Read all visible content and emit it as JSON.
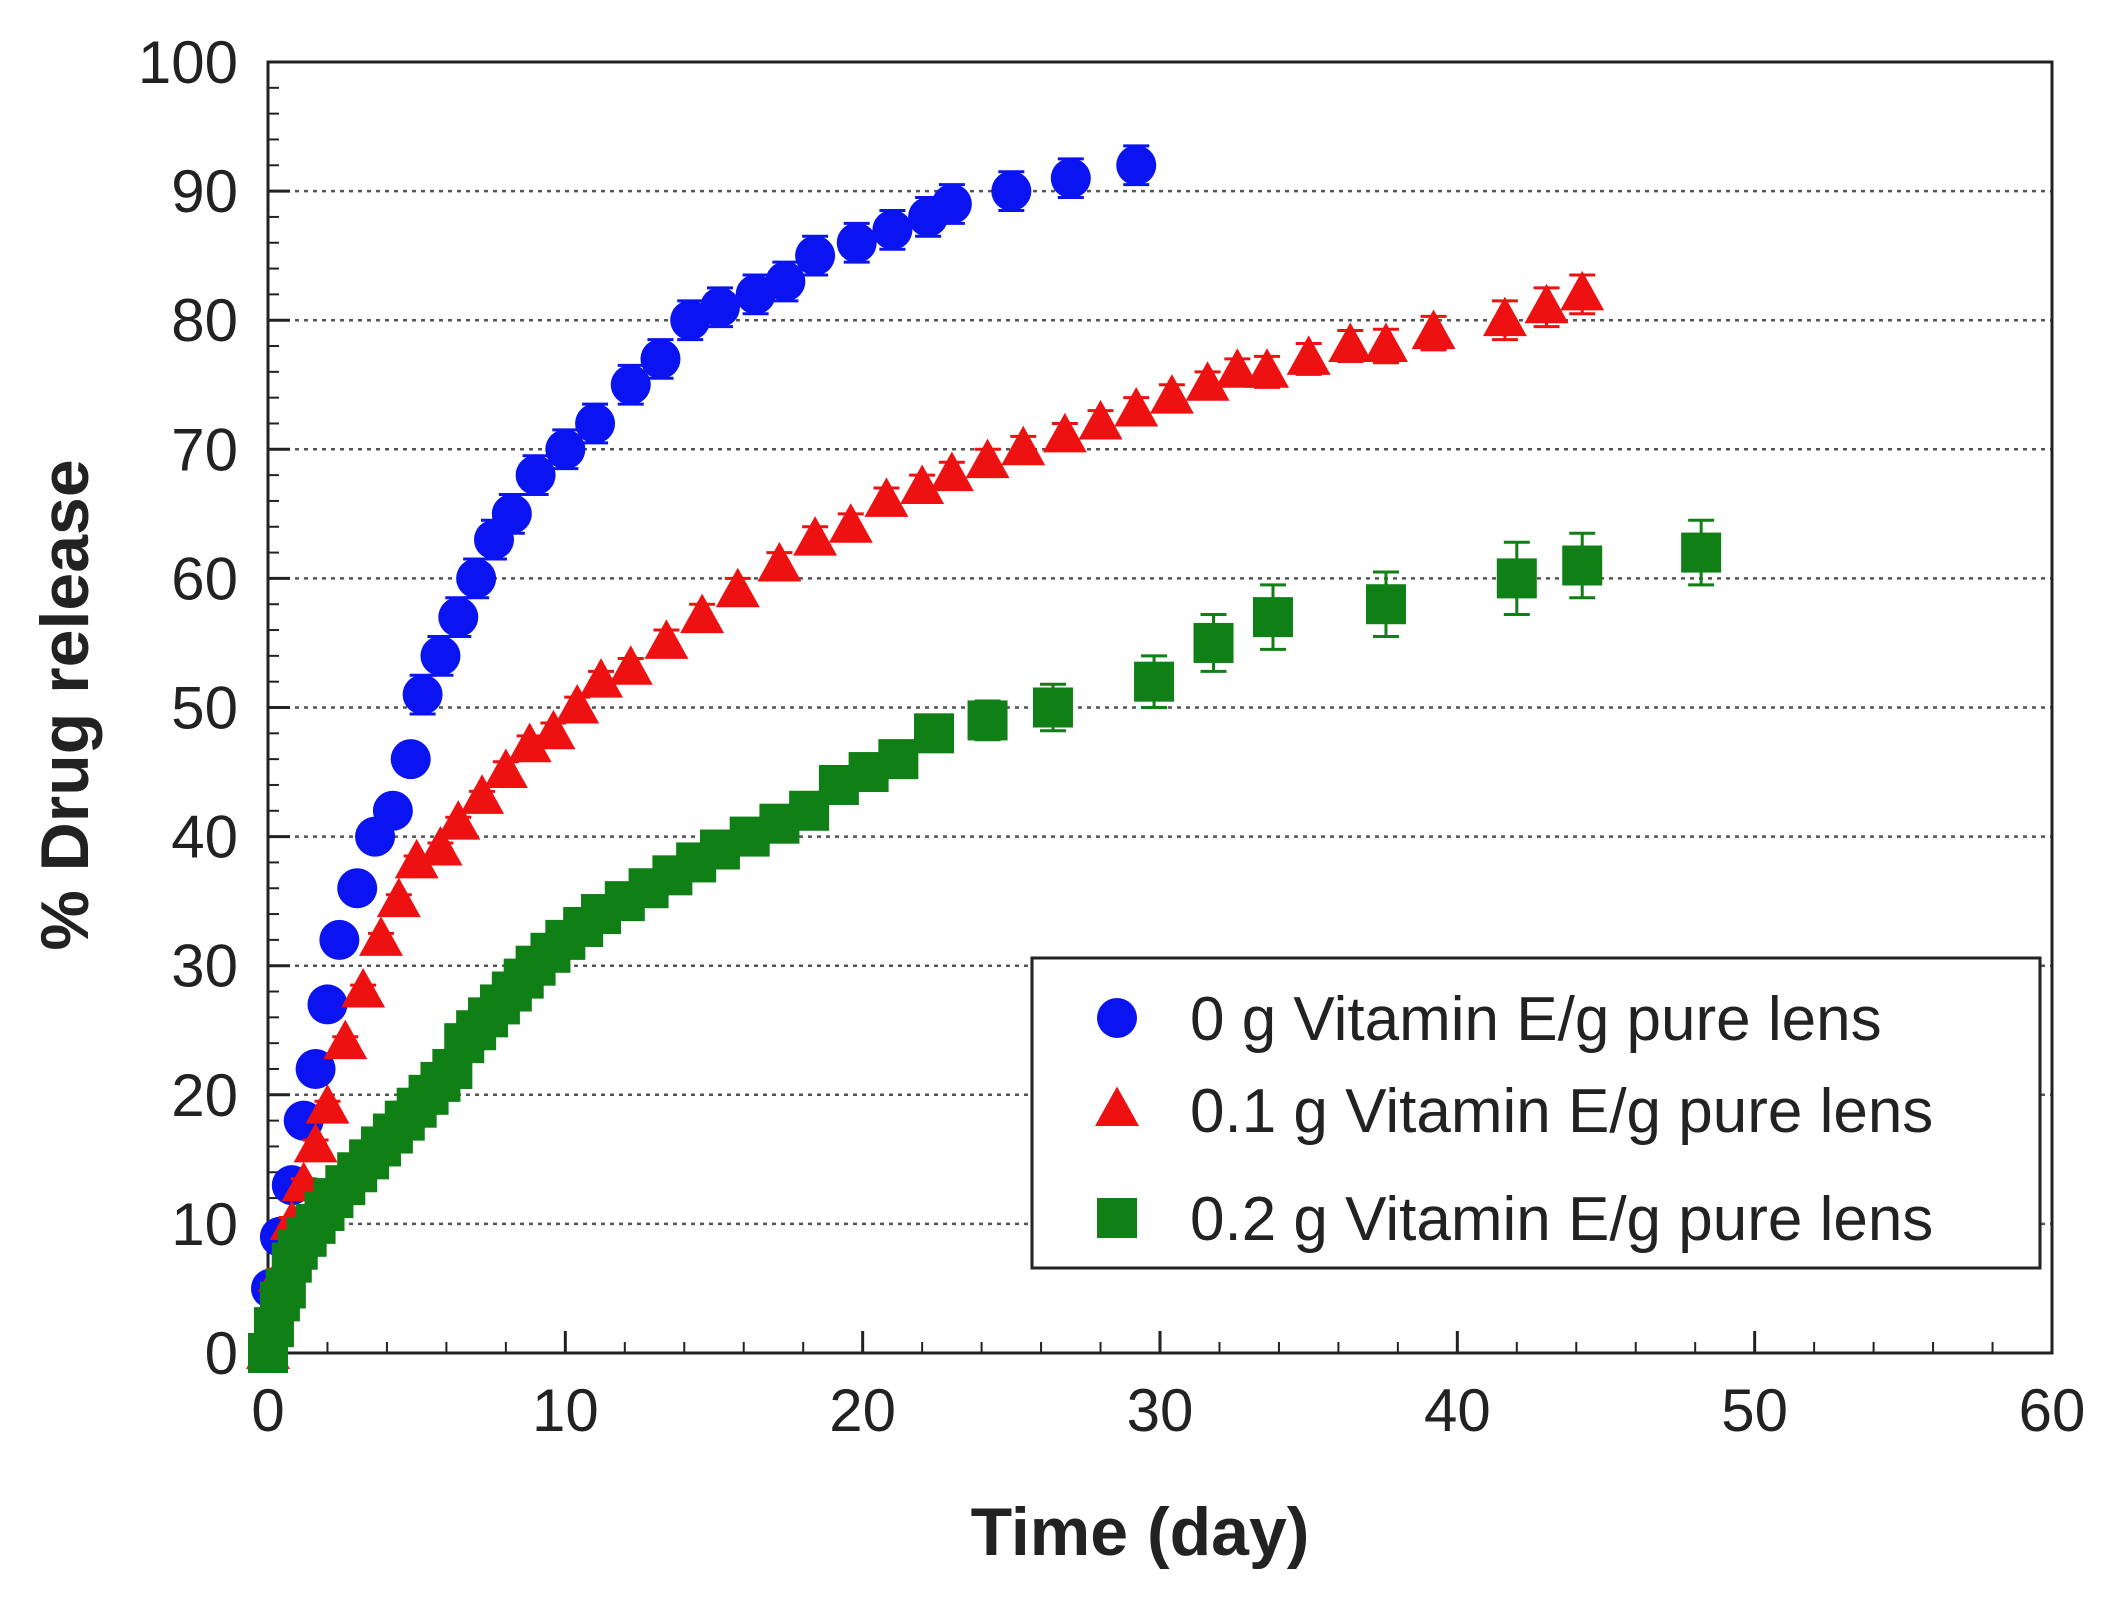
{
  "chart_data": {
    "type": "scatter",
    "title": "",
    "xlabel": "Time (day)",
    "ylabel": "% Drug release",
    "xlim": [
      0,
      60
    ],
    "ylim": [
      0,
      100
    ],
    "xticks": [
      "0",
      "10",
      "20",
      "30",
      "40",
      "50",
      "60"
    ],
    "yticks": [
      "0",
      "10",
      "20",
      "30",
      "40",
      "50",
      "60",
      "70",
      "80",
      "90",
      "100"
    ],
    "grid": "horizontal dotted",
    "legend_position": "bottom-right",
    "error_bars": true,
    "series": [
      {
        "name": "0 g Vitamin E/g pure lens",
        "marker": "circle",
        "color": "#0a14f0",
        "x": [
          0.1,
          0.4,
          0.8,
          1.2,
          1.6,
          2.0,
          2.4,
          3.0,
          3.6,
          4.2,
          4.8,
          5.2,
          5.8,
          6.4,
          7.0,
          7.6,
          8.2,
          9.0,
          10.0,
          11.0,
          12.2,
          13.2,
          14.2,
          15.2,
          16.4,
          17.4,
          18.4,
          19.8,
          21.0,
          22.2,
          23.0,
          25.0,
          27.0,
          29.2
        ],
        "y": [
          5,
          9,
          13,
          18,
          22,
          27,
          32,
          36,
          40,
          42,
          46,
          51,
          54,
          57,
          60,
          63,
          65,
          68,
          70,
          72,
          75,
          77,
          80,
          81,
          82,
          83,
          85,
          86,
          87,
          88,
          89,
          90,
          91,
          92
        ],
        "error": [
          1,
          1,
          1,
          1,
          1,
          1,
          1,
          1,
          1,
          1,
          1,
          1.5,
          1.5,
          1.5,
          1.5,
          1.5,
          1.5,
          1.5,
          1.5,
          1.5,
          1.5,
          1.5,
          1.5,
          1.5,
          1.5,
          1.5,
          1.5,
          1.5,
          1.5,
          1.5,
          1.5,
          1.5,
          1.5,
          1.5
        ]
      },
      {
        "name": "0.1 g Vitamin E/g pure lens",
        "marker": "triangle",
        "color": "#ee1111",
        "x": [
          0.0,
          0.4,
          0.8,
          1.2,
          1.6,
          2.0,
          2.6,
          3.2,
          3.8,
          4.4,
          5.0,
          5.8,
          6.4,
          7.2,
          8.0,
          8.8,
          9.6,
          10.4,
          11.2,
          12.2,
          13.4,
          14.6,
          15.8,
          17.2,
          18.4,
          19.6,
          20.8,
          22.0,
          23.0,
          24.2,
          25.4,
          26.8,
          28.0,
          29.2,
          30.4,
          31.6,
          32.6,
          33.6,
          35.0,
          36.4,
          37.6,
          39.2,
          41.6,
          43.0,
          44.2
        ],
        "y": [
          0,
          6,
          10,
          13,
          16,
          19,
          24,
          28,
          32,
          35,
          38,
          39,
          41,
          43,
          45,
          47,
          48,
          50,
          52,
          53,
          55,
          57,
          59,
          61,
          63,
          64,
          66,
          67,
          68,
          69,
          70,
          71,
          72,
          73,
          74,
          75,
          76,
          76,
          77,
          78,
          78,
          79,
          80,
          81,
          82
        ],
        "error": [
          0.5,
          0.5,
          0.5,
          0.5,
          0.5,
          0.5,
          0.5,
          0.5,
          0.5,
          0.5,
          0.5,
          0.5,
          0.5,
          0.5,
          0.8,
          0.8,
          0.8,
          0.8,
          0.8,
          0.8,
          1,
          1,
          1,
          1,
          1,
          1,
          1,
          1,
          1,
          1,
          1,
          1,
          1,
          1,
          1,
          1,
          1,
          1.2,
          1.2,
          1.2,
          1.3,
          1.3,
          1.5,
          1.5,
          1.5
        ]
      },
      {
        "name": "0.2 g Vitamin E/g pure lens",
        "marker": "square",
        "color": "#0f7f16",
        "x": [
          0.0,
          0.2,
          0.4,
          0.6,
          0.8,
          1.0,
          1.3,
          1.6,
          1.9,
          2.2,
          2.6,
          3.0,
          3.4,
          3.8,
          4.2,
          4.6,
          5.0,
          5.4,
          5.8,
          6.2,
          6.6,
          7.0,
          7.4,
          7.8,
          8.2,
          8.6,
          9.0,
          9.5,
          10.0,
          10.6,
          11.2,
          12.0,
          12.8,
          13.6,
          14.4,
          15.2,
          16.2,
          17.2,
          18.2,
          19.2,
          20.2,
          21.2,
          22.4,
          24.2,
          26.4,
          29.8,
          31.8,
          33.8,
          37.6,
          42.0,
          44.2,
          48.2
        ],
        "y": [
          0,
          2,
          4,
          5,
          7,
          8,
          9,
          10,
          11,
          12,
          13,
          14,
          15,
          16,
          17,
          18,
          19,
          20,
          21,
          22,
          24,
          25,
          26,
          27,
          28,
          29,
          30,
          31,
          32,
          33,
          34,
          35,
          36,
          37,
          38,
          39,
          40,
          41,
          42,
          44,
          45,
          46,
          48,
          49,
          50,
          52,
          55,
          57,
          58,
          60,
          61,
          62
        ],
        "error": [
          0.5,
          0.5,
          0.5,
          0.5,
          0.5,
          0.5,
          0.5,
          0.5,
          0.5,
          0.5,
          0.5,
          0.5,
          0.5,
          0.5,
          0.5,
          0.5,
          0.5,
          0.5,
          0.5,
          0.5,
          0.5,
          0.5,
          0.5,
          0.5,
          0.5,
          0.5,
          0.5,
          0.5,
          0.5,
          0.5,
          0.5,
          0.5,
          0.5,
          0.5,
          0.5,
          0.5,
          0.5,
          0.5,
          0.5,
          0.5,
          1,
          1,
          1.2,
          1.5,
          1.8,
          2,
          2.2,
          2.5,
          2.5,
          2.8,
          2.5,
          2.5
        ]
      }
    ]
  }
}
